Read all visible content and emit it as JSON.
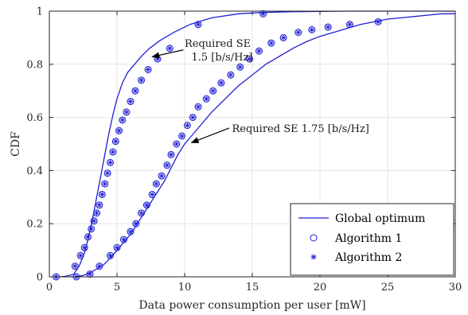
{
  "chart_data": {
    "type": "line",
    "xlabel": "Data power consumption per user [mW]",
    "ylabel": "CDF",
    "xlim": [
      0,
      30
    ],
    "ylim": [
      0,
      1
    ],
    "xticks": [
      0,
      5,
      10,
      15,
      20,
      25,
      30
    ],
    "yticks": [
      0,
      0.2,
      0.4,
      0.6,
      0.8,
      1
    ],
    "x_tick_labels": [
      "0",
      "5",
      "10",
      "15",
      "20",
      "25",
      "30"
    ],
    "y_tick_labels": [
      "0",
      "0.2",
      "0.4",
      "0.6",
      "0.8",
      "1"
    ],
    "grid": true,
    "legend_position": "bottom-right",
    "legend": [
      "Global optimum",
      "Algorithm 1",
      "Algorithm 2"
    ],
    "colors": {
      "series": "#1f1fd6",
      "grid": "#e4e4e4",
      "axis": "#262626",
      "annotation": "#000000"
    },
    "curves": [
      {
        "label_lines": [
          "Required SE",
          "1.5 [b/s/Hz]"
        ],
        "x": [
          0.3,
          0.8,
          1.3,
          1.8,
          2.2,
          2.6,
          2.9,
          3.2,
          3.5,
          3.8,
          4.1,
          4.4,
          4.7,
          5.0,
          5.4,
          5.8,
          6.3,
          6.8,
          7.4,
          8.2,
          9.2,
          10.4,
          12.0,
          14.0,
          15.7,
          18.0,
          22.0,
          26.0,
          30.0
        ],
        "y": [
          0,
          0,
          0.003,
          0.01,
          0.04,
          0.09,
          0.15,
          0.22,
          0.3,
          0.38,
          0.46,
          0.54,
          0.61,
          0.67,
          0.73,
          0.77,
          0.8,
          0.83,
          0.86,
          0.89,
          0.92,
          0.95,
          0.975,
          0.99,
          0.995,
          0.998,
          1.0,
          1.0,
          1.0
        ],
        "algorithm_1_x": [
          0.5,
          1.9,
          2.3,
          2.6,
          2.85,
          3.1,
          3.3,
          3.5,
          3.7,
          3.9,
          4.1,
          4.3,
          4.5,
          4.7,
          4.9,
          5.15,
          5.4,
          5.7,
          6.0,
          6.35,
          6.8,
          7.3,
          8.0,
          8.9,
          11.0,
          15.8
        ],
        "algorithm_1_y": [
          0,
          0.04,
          0.08,
          0.11,
          0.15,
          0.18,
          0.21,
          0.24,
          0.27,
          0.31,
          0.35,
          0.39,
          0.43,
          0.47,
          0.51,
          0.55,
          0.59,
          0.62,
          0.66,
          0.7,
          0.74,
          0.78,
          0.82,
          0.86,
          0.95,
          0.99
        ]
      },
      {
        "label_lines": [
          "Required SE 1.75 [b/s/Hz]"
        ],
        "x": [
          1.5,
          2.0,
          2.5,
          3.0,
          3.5,
          4.0,
          4.5,
          5.0,
          5.5,
          6.0,
          6.5,
          7.0,
          7.5,
          8.0,
          8.5,
          9.0,
          9.5,
          10.0,
          10.5,
          11.0,
          12.0,
          13.0,
          14.0,
          15.0,
          16.0,
          17.0,
          18.0,
          19.0,
          20.0,
          21.0,
          22.0,
          23.0,
          24.0,
          25.0,
          26.0,
          27.0,
          28.0,
          29.0,
          30.0
        ],
        "y": [
          0,
          0,
          0.005,
          0.015,
          0.03,
          0.045,
          0.07,
          0.1,
          0.13,
          0.16,
          0.2,
          0.24,
          0.28,
          0.32,
          0.36,
          0.41,
          0.46,
          0.5,
          0.53,
          0.56,
          0.62,
          0.67,
          0.72,
          0.76,
          0.8,
          0.83,
          0.86,
          0.885,
          0.905,
          0.92,
          0.935,
          0.95,
          0.96,
          0.97,
          0.975,
          0.98,
          0.985,
          0.99,
          0.99
        ],
        "algorithm_1_x": [
          2.0,
          3.0,
          3.7,
          4.5,
          5.0,
          5.5,
          6.0,
          6.4,
          6.8,
          7.2,
          7.6,
          7.9,
          8.3,
          8.7,
          9.0,
          9.4,
          9.8,
          10.2,
          10.6,
          11.0,
          11.6,
          12.1,
          12.7,
          13.4,
          14.1,
          14.8,
          15.5,
          16.4,
          17.3,
          18.4,
          19.4,
          20.6,
          22.2,
          24.3
        ],
        "algorithm_1_y": [
          0,
          0.01,
          0.04,
          0.08,
          0.11,
          0.14,
          0.17,
          0.2,
          0.24,
          0.27,
          0.31,
          0.35,
          0.38,
          0.42,
          0.46,
          0.5,
          0.53,
          0.57,
          0.6,
          0.64,
          0.67,
          0.7,
          0.73,
          0.76,
          0.79,
          0.82,
          0.85,
          0.88,
          0.9,
          0.92,
          0.93,
          0.94,
          0.95,
          0.96
        ]
      }
    ]
  }
}
